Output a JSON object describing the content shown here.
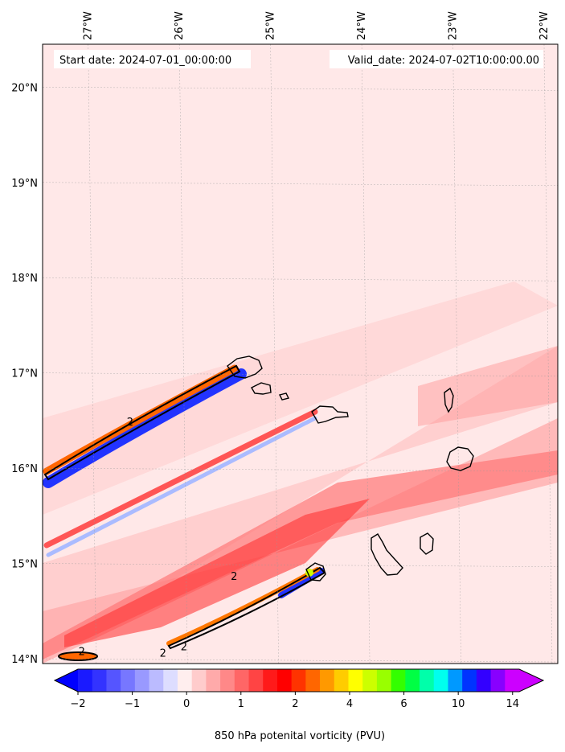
{
  "annotations": {
    "start": "Start date: 2024-07-01_00:00:00",
    "valid": "Valid_date: 2024-07-02T10:00:00.00"
  },
  "map": {
    "lon_range": [
      -27.5,
      -21.85
    ],
    "lat_range": [
      13.95,
      20.45
    ],
    "lon_ticks": [
      {
        "value": -27,
        "label": "27°W"
      },
      {
        "value": -26,
        "label": "26°W"
      },
      {
        "value": -25,
        "label": "25°W"
      },
      {
        "value": -24,
        "label": "24°W"
      },
      {
        "value": -23,
        "label": "23°W"
      },
      {
        "value": -22,
        "label": "22°W"
      }
    ],
    "lat_ticks": [
      {
        "value": 14,
        "label": "14°N"
      },
      {
        "value": 15,
        "label": "15°N"
      },
      {
        "value": 16,
        "label": "16°N"
      },
      {
        "value": 17,
        "label": "17°N"
      },
      {
        "value": 18,
        "label": "18°N"
      },
      {
        "value": 19,
        "label": "19°N"
      },
      {
        "value": 20,
        "label": "20°N"
      }
    ],
    "gridlines": true,
    "background_color": "#ffe8e8",
    "contour_level_label": "2",
    "contour_labels": [
      {
        "lon": -26.54,
        "lat": 16.45
      },
      {
        "lon": -25.4,
        "lat": 14.83
      },
      {
        "lon": -25.95,
        "lat": 14.09
      },
      {
        "lon": -26.18,
        "lat": 14.02
      },
      {
        "lon": -27.07,
        "lat": 14.04
      }
    ]
  },
  "colorbar": {
    "label": "850 hPa potenital vorticity (PVU)",
    "ticks": [
      "−2",
      "−1",
      "0",
      "1",
      "2",
      "4",
      "6",
      "10",
      "14"
    ],
    "colors": [
      "#1a1aff",
      "#3333ff",
      "#5555ff",
      "#7777ff",
      "#9999ff",
      "#bbbbff",
      "#ddddff",
      "#ffeeee",
      "#ffcccc",
      "#ffaaaa",
      "#ff8888",
      "#ff6666",
      "#ff4444",
      "#ff1a1a",
      "#ff0000",
      "#ff3300",
      "#ff6600",
      "#ff9900",
      "#ffcc00",
      "#ffff00",
      "#ccff00",
      "#99ff00",
      "#33ff00",
      "#00ff44",
      "#00ffaa",
      "#00ffee",
      "#0099ff",
      "#0033ff",
      "#3300ff",
      "#8800ff",
      "#cc00ff"
    ],
    "extend_low_color": "#0000ff",
    "extend_high_color": "#cc00ff"
  }
}
